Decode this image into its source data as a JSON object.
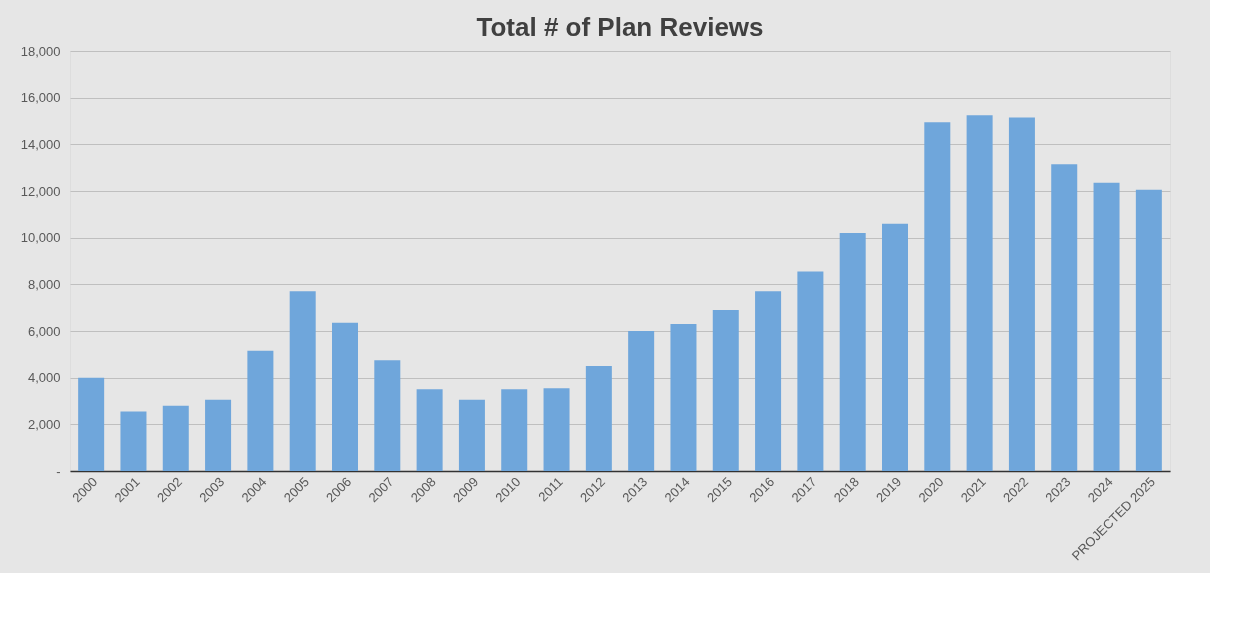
{
  "chart_data": {
    "type": "bar",
    "title": "Total # of Plan Reviews",
    "categories": [
      "2000",
      "2001",
      "2002",
      "2003",
      "2004",
      "2005",
      "2006",
      "2007",
      "2008",
      "2009",
      "2010",
      "2011",
      "2012",
      "2013",
      "2014",
      "2015",
      "2016",
      "2017",
      "2018",
      "2019",
      "2020",
      "2021",
      "2022",
      "2023",
      "2024",
      "PROJECTED 2025"
    ],
    "values": [
      4000,
      2550,
      2800,
      3050,
      5150,
      7700,
      6350,
      4750,
      3500,
      3050,
      3500,
      3550,
      4500,
      6000,
      6300,
      6900,
      7700,
      8550,
      10200,
      10600,
      14950,
      15250,
      15150,
      13150,
      12350,
      12050
    ],
    "color": "#6fa6db",
    "ylim": [
      0,
      18000
    ],
    "yticks": [
      {
        "value": 0,
        "label": "-"
      },
      {
        "value": 2000,
        "label": "2,000"
      },
      {
        "value": 4000,
        "label": "4,000"
      },
      {
        "value": 6000,
        "label": "6,000"
      },
      {
        "value": 8000,
        "label": "8,000"
      },
      {
        "value": 10000,
        "label": "10,000"
      },
      {
        "value": 12000,
        "label": "12,000"
      },
      {
        "value": 14000,
        "label": "14,000"
      },
      {
        "value": 16000,
        "label": "16,000"
      },
      {
        "value": 18000,
        "label": "18,000"
      }
    ],
    "grid": "y"
  }
}
